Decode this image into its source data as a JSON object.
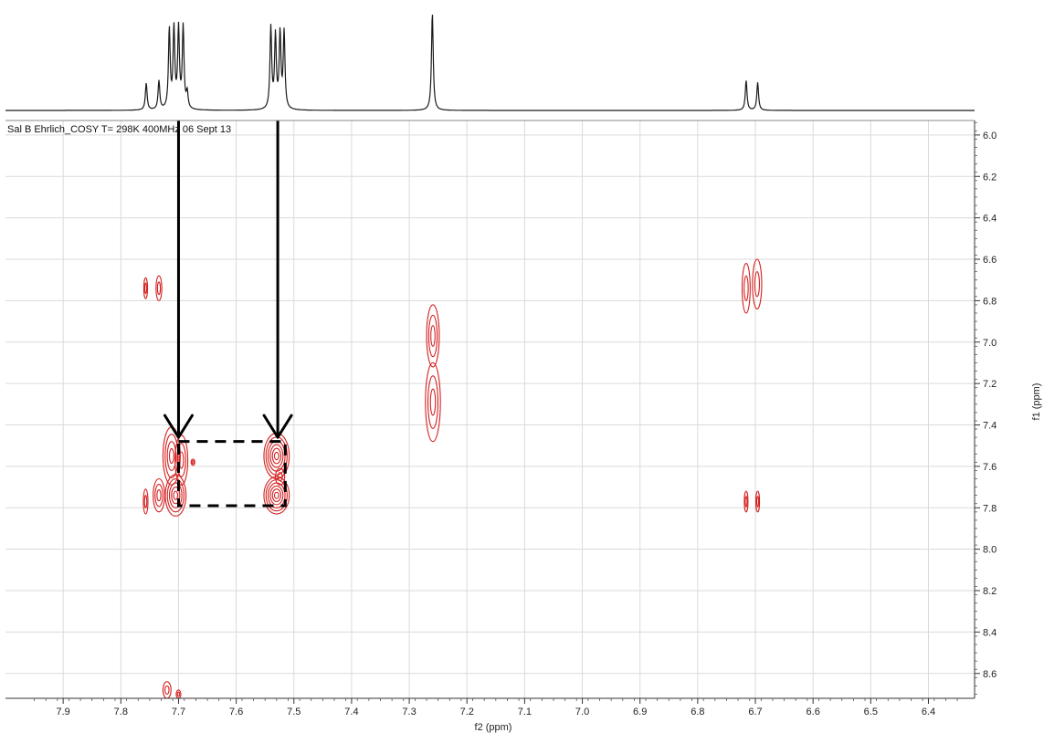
{
  "chart_data": {
    "type": "contour",
    "header": "Sal B Ehrlich_COSY   T= 298K   400MHz   06 Sept 13",
    "xlabel": "f2 (ppm)",
    "ylabel": "f1 (ppm)",
    "xlim": [
      8.0,
      6.32
    ],
    "ylim": [
      5.93,
      8.72
    ],
    "x_reversed": true,
    "x_ticks": [
      "7.9",
      "7.8",
      "7.7",
      "7.6",
      "7.5",
      "7.4",
      "7.3",
      "7.2",
      "7.1",
      "7.0",
      "6.9",
      "6.8",
      "6.7",
      "6.6",
      "6.5",
      "6.4"
    ],
    "y_ticks": [
      "6.0",
      "6.2",
      "6.4",
      "6.6",
      "6.8",
      "7.0",
      "7.2",
      "7.4",
      "7.6",
      "7.8",
      "8.0",
      "8.2",
      "8.4",
      "8.6"
    ],
    "grid": true,
    "contour_color": "#d42020",
    "spectrum_1d": {
      "peaks": [
        {
          "ppm": 7.756,
          "height": 0.27
        },
        {
          "ppm": 7.734,
          "height": 0.29
        },
        {
          "ppm": 7.716,
          "height": 0.8
        },
        {
          "ppm": 7.708,
          "height": 0.8
        },
        {
          "ppm": 7.7,
          "height": 0.8
        },
        {
          "ppm": 7.692,
          "height": 0.82
        },
        {
          "ppm": 7.685,
          "height": 0.16
        },
        {
          "ppm": 7.54,
          "height": 0.82
        },
        {
          "ppm": 7.532,
          "height": 0.73
        },
        {
          "ppm": 7.524,
          "height": 0.75
        },
        {
          "ppm": 7.517,
          "height": 0.77
        },
        {
          "ppm": 7.26,
          "height": 0.98
        },
        {
          "ppm": 6.716,
          "height": 0.3
        },
        {
          "ppm": 6.696,
          "height": 0.28
        }
      ]
    },
    "cross_peaks": [
      {
        "f2": 7.757,
        "f1": 6.74,
        "rx": 0.003,
        "ry": 0.05
      },
      {
        "f2": 7.734,
        "f1": 6.74,
        "rx": 0.005,
        "ry": 0.06
      },
      {
        "f2": 6.716,
        "f1": 6.74,
        "rx": 0.007,
        "ry": 0.12
      },
      {
        "f2": 6.697,
        "f1": 6.72,
        "rx": 0.008,
        "ry": 0.12
      },
      {
        "f2": 7.259,
        "f1": 6.97,
        "rx": 0.011,
        "ry": 0.15
      },
      {
        "f2": 7.259,
        "f1": 7.29,
        "rx": 0.013,
        "ry": 0.19
      },
      {
        "f2": 7.712,
        "f1": 7.55,
        "rx": 0.015,
        "ry": 0.14
      },
      {
        "f2": 7.695,
        "f1": 7.57,
        "rx": 0.011,
        "ry": 0.12
      },
      {
        "f2": 7.705,
        "f1": 7.74,
        "rx": 0.018,
        "ry": 0.1
      },
      {
        "f2": 7.734,
        "f1": 7.74,
        "rx": 0.01,
        "ry": 0.08
      },
      {
        "f2": 7.757,
        "f1": 7.77,
        "rx": 0.004,
        "ry": 0.06
      },
      {
        "f2": 7.53,
        "f1": 7.55,
        "rx": 0.022,
        "ry": 0.11
      },
      {
        "f2": 7.53,
        "f1": 7.74,
        "rx": 0.022,
        "ry": 0.09
      },
      {
        "f2": 7.524,
        "f1": 7.65,
        "rx": 0.008,
        "ry": 0.04
      },
      {
        "f2": 7.675,
        "f1": 7.58,
        "rx": 0.002,
        "ry": 0.015
      },
      {
        "f2": 6.716,
        "f1": 7.77,
        "rx": 0.002,
        "ry": 0.05
      },
      {
        "f2": 6.696,
        "f1": 7.77,
        "rx": 0.002,
        "ry": 0.05
      },
      {
        "f2": 7.72,
        "f1": 8.68,
        "rx": 0.007,
        "ry": 0.04
      },
      {
        "f2": 7.7,
        "f1": 8.7,
        "rx": 0.004,
        "ry": 0.02
      }
    ],
    "annotations": {
      "arrows": [
        {
          "f2": 7.7,
          "from_f1": 5.93,
          "to_f1": 7.46
        },
        {
          "f2": 7.528,
          "from_f1": 5.93,
          "to_f1": 7.46
        }
      ],
      "dashed_box": {
        "f2_left": 7.7,
        "f2_right": 7.515,
        "f1_top": 7.48,
        "f1_bottom": 7.79
      }
    }
  }
}
